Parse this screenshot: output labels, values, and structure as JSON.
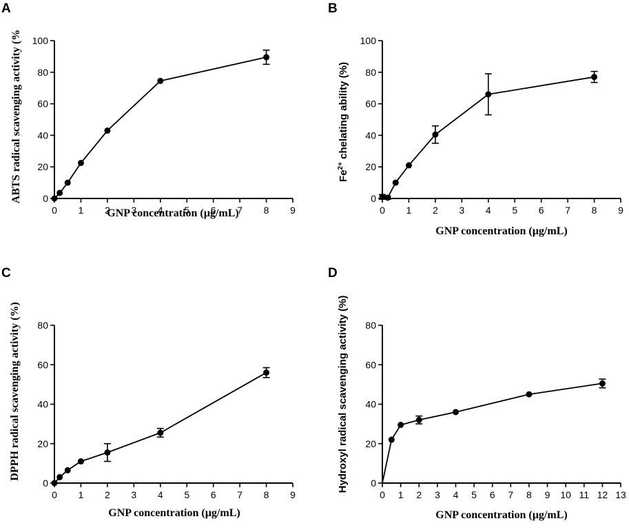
{
  "chart_data": [
    {
      "type": "line",
      "panel": "A",
      "title": "",
      "xlabel": "GNP concentration (µg/mL)",
      "ylabel": "ABTS radical scavenging activity (%",
      "xlim": [
        0,
        9
      ],
      "ylim": [
        0,
        100
      ],
      "xticks": [
        0,
        1,
        2,
        3,
        4,
        5,
        6,
        7,
        8,
        9
      ],
      "yticks": [
        0,
        20,
        40,
        60,
        80,
        100
      ],
      "series": [
        {
          "name": "ABTS",
          "x": [
            0,
            0.2,
            0.5,
            1,
            2,
            4,
            8
          ],
          "y": [
            0,
            3.5,
            10,
            22.5,
            43,
            74.5,
            89.5
          ],
          "err": [
            0,
            0.5,
            0.5,
            0.5,
            0.6,
            0.8,
            4.5
          ]
        }
      ]
    },
    {
      "type": "line",
      "panel": "B",
      "title": "",
      "xlabel": "GNP concentration (µg/mL)",
      "ylabel_main": "Fe",
      "ylabel_sup": "2+",
      "ylabel_rest": " chelating ability (%)",
      "xlim": [
        0,
        9
      ],
      "ylim": [
        0,
        100
      ],
      "xticks": [
        0,
        1,
        2,
        3,
        4,
        5,
        6,
        7,
        8,
        9
      ],
      "yticks": [
        0,
        20,
        40,
        60,
        80,
        100
      ],
      "series": [
        {
          "name": "Fe2+ chelating",
          "x": [
            0,
            0.2,
            0.5,
            1,
            2,
            4,
            8
          ],
          "y": [
            1,
            0.5,
            10,
            21,
            40.5,
            66,
            77
          ],
          "err": [
            1.5,
            1,
            0.6,
            0.6,
            5.5,
            13,
            3.5
          ]
        }
      ]
    },
    {
      "type": "line",
      "panel": "C",
      "title": "",
      "xlabel": "GNP concentration (µg/mL)",
      "ylabel": "DPPH radical scavenging activity (%)",
      "xlim": [
        0,
        9
      ],
      "ylim": [
        0,
        80
      ],
      "xticks": [
        0,
        1,
        2,
        3,
        4,
        5,
        6,
        7,
        8,
        9
      ],
      "yticks": [
        0,
        20,
        40,
        60,
        80
      ],
      "series": [
        {
          "name": "DPPH",
          "x": [
            0,
            0.2,
            0.5,
            1,
            2,
            4,
            8
          ],
          "y": [
            0,
            3,
            6.5,
            11,
            15.5,
            25.5,
            56
          ],
          "err": [
            0.3,
            0.4,
            0.5,
            0.6,
            4.5,
            2.2,
            2.5
          ]
        }
      ]
    },
    {
      "type": "line",
      "panel": "D",
      "title": "",
      "xlabel": "GNP concentration (µg/mL)",
      "ylabel": "Hydroxyl radical scavenging activity (%)",
      "xlim": [
        0,
        13
      ],
      "ylim": [
        0,
        80
      ],
      "xticks": [
        0,
        1,
        2,
        3,
        4,
        5,
        6,
        7,
        8,
        9,
        10,
        11,
        12,
        13
      ],
      "yticks": [
        0,
        20,
        40,
        60,
        80
      ],
      "series": [
        {
          "name": "Hydroxyl",
          "x": [
            0,
            0.5,
            1,
            2,
            4,
            8,
            12
          ],
          "y": [
            0,
            22,
            29.5,
            32,
            36,
            45,
            50.5
          ],
          "err": [
            0,
            0.6,
            0.8,
            2,
            0.8,
            0.8,
            2.2
          ]
        }
      ]
    }
  ]
}
